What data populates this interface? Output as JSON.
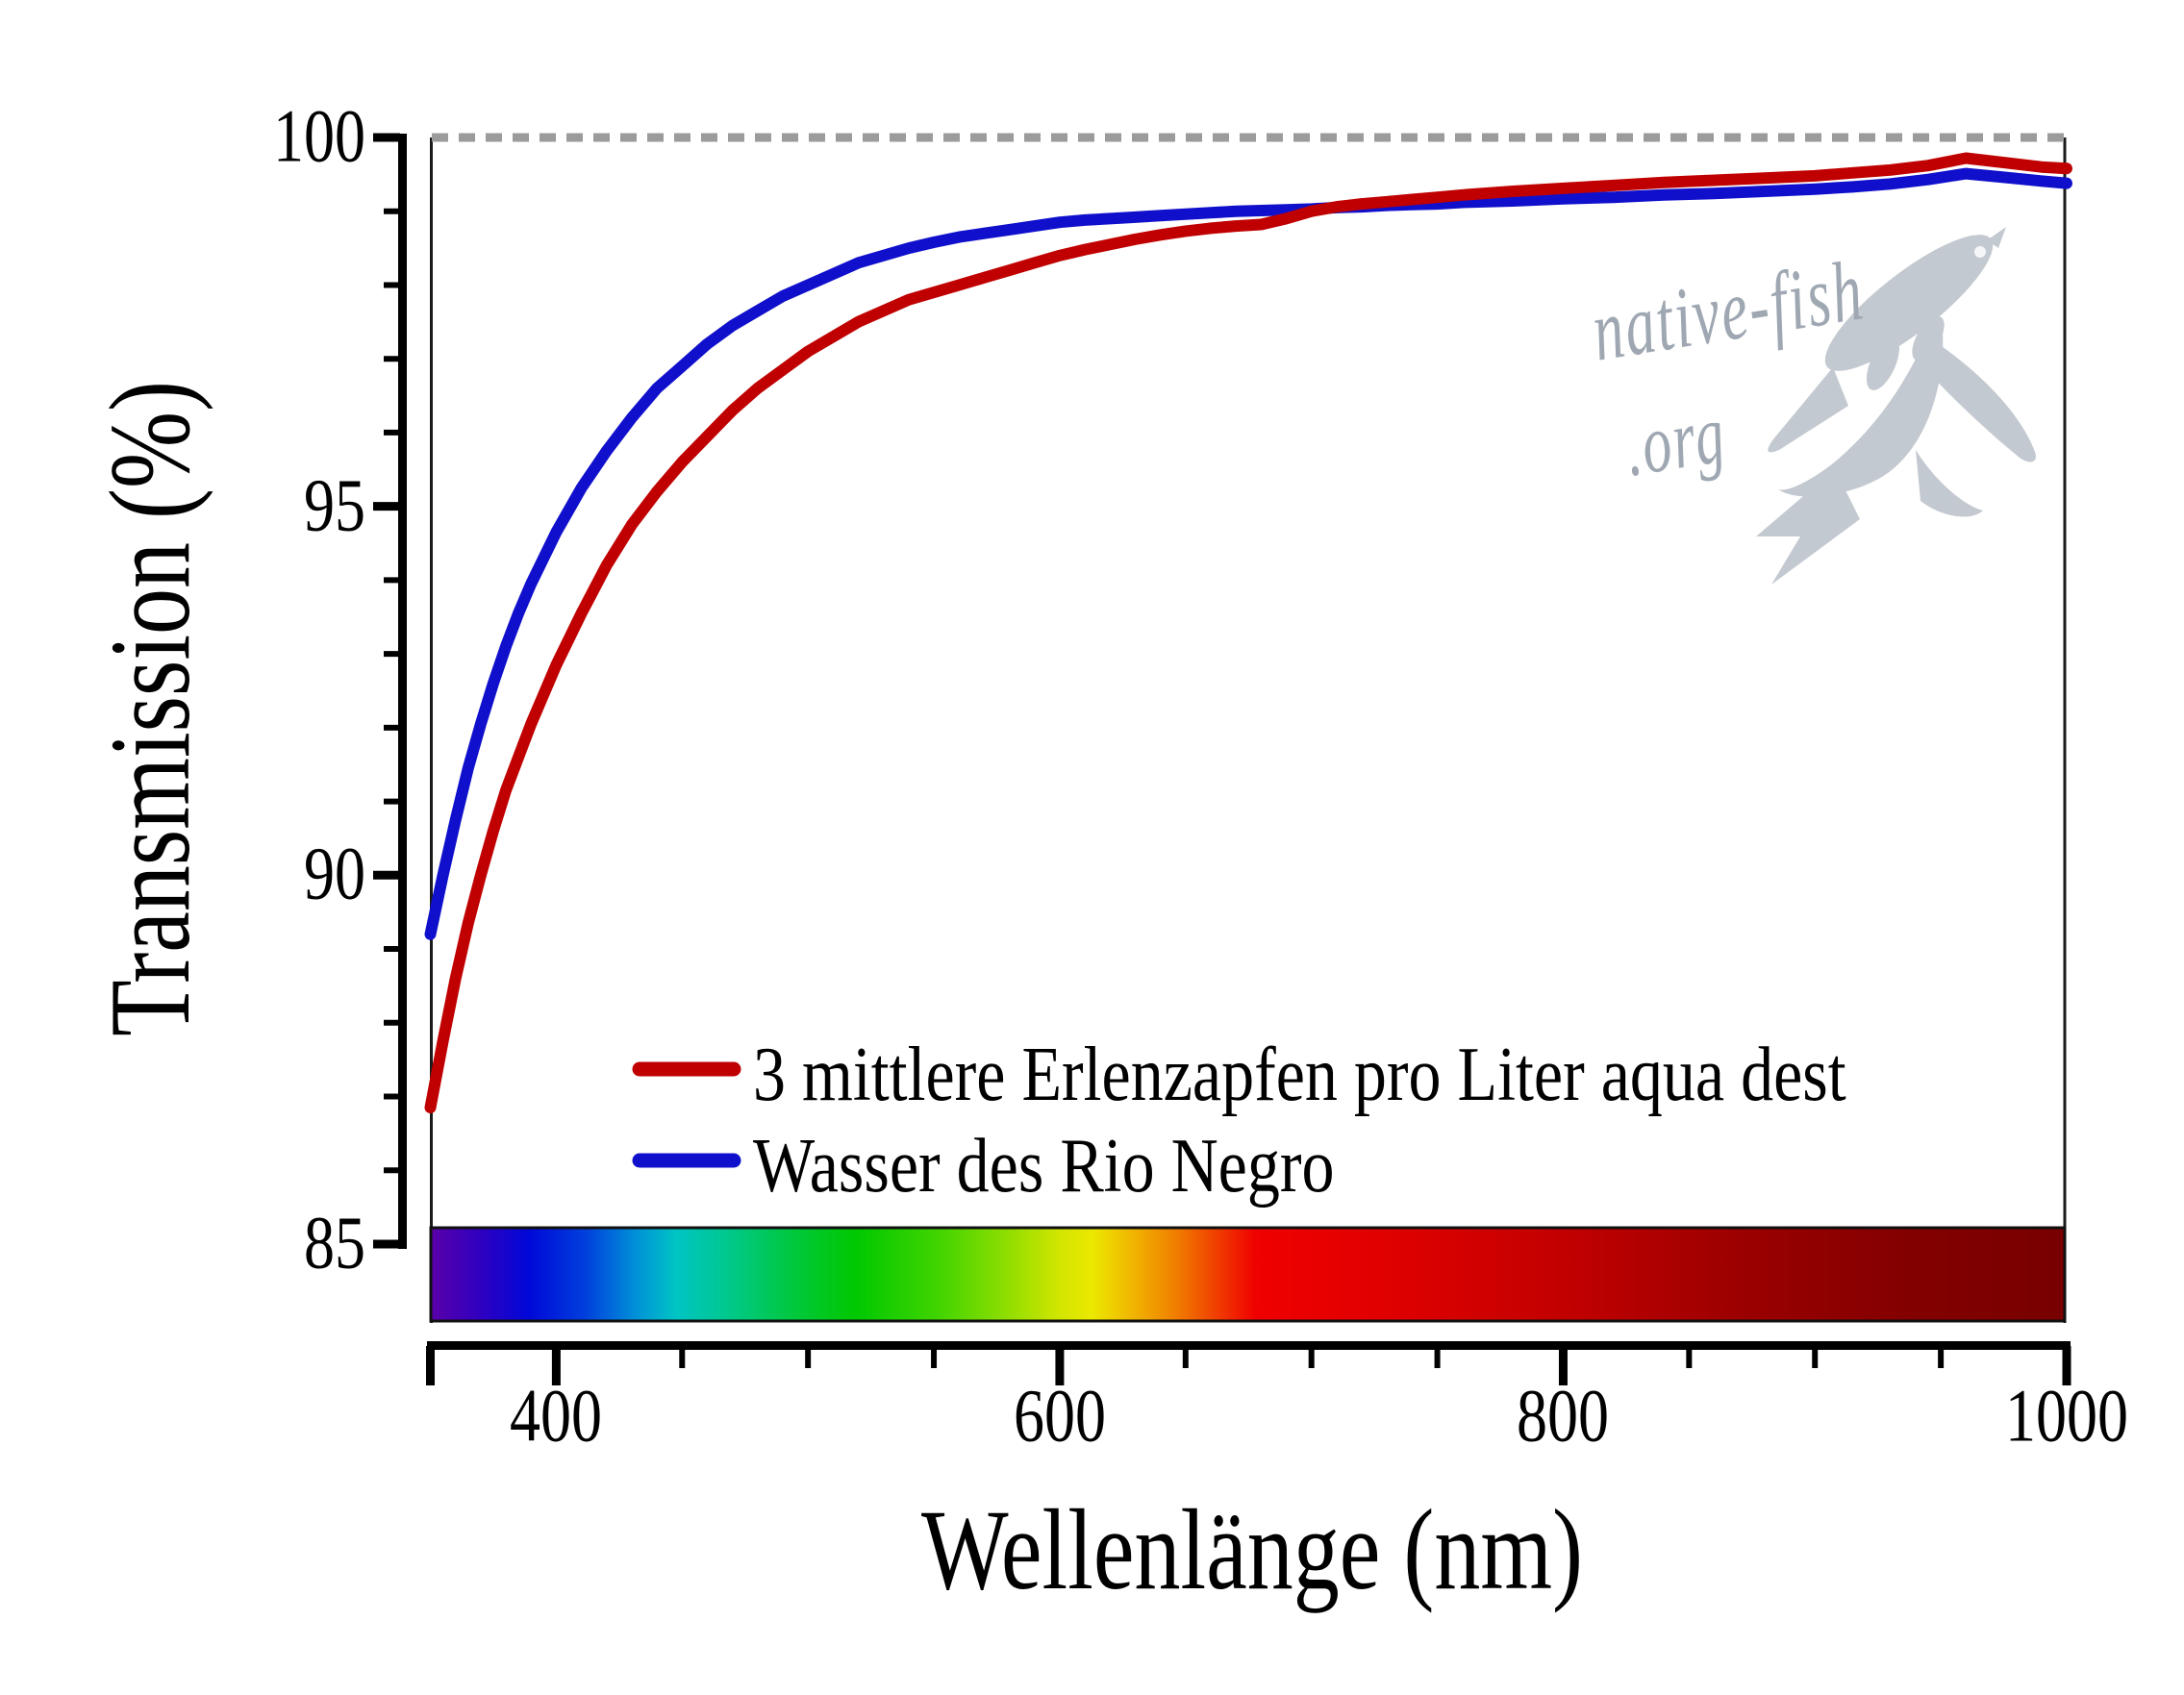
{
  "watermark": {
    "line1": "native-fish",
    "line2": ".org",
    "color": "#9fa8b2"
  },
  "chart_data": {
    "type": "line",
    "title": "",
    "xlabel": "Wellenlänge (nm)",
    "ylabel": "Transmission (%)",
    "xlim": [
      350,
      1000
    ],
    "ylim": [
      85,
      100
    ],
    "grid": false,
    "legend_position": "inside bottom-left",
    "xticks_major": [
      400,
      600,
      800,
      1000
    ],
    "xtick_labels": [
      "400",
      "600",
      "800",
      "1000"
    ],
    "xticks_minor": [
      450,
      500,
      550,
      650,
      700,
      750,
      850,
      900,
      950
    ],
    "yticks_major": [
      100,
      95,
      90,
      85
    ],
    "ytick_labels": [
      "100",
      "95",
      "90",
      "85"
    ],
    "yticks_minor": [
      86,
      87,
      88,
      89,
      91,
      92,
      93,
      94,
      96,
      97,
      98,
      99
    ],
    "reference_line": {
      "y": 100,
      "style": "dashed",
      "color": "#9b9b9b"
    },
    "series": [
      {
        "name": "3 mittlere Erlenzapfen pro Liter aqua dest",
        "color": "#C00000",
        "x": [
          350,
          355,
          360,
          365,
          370,
          375,
          380,
          385,
          390,
          395,
          400,
          410,
          420,
          430,
          440,
          450,
          460,
          470,
          480,
          490,
          500,
          510,
          520,
          530,
          540,
          550,
          560,
          570,
          580,
          590,
          600,
          610,
          620,
          630,
          640,
          650,
          660,
          670,
          680,
          690,
          700,
          710,
          720,
          730,
          740,
          750,
          760,
          780,
          800,
          820,
          840,
          860,
          880,
          900,
          915,
          930,
          945,
          960,
          975,
          990,
          1000
        ],
        "y": [
          86.85,
          87.75,
          88.6,
          89.35,
          90.0,
          90.6,
          91.15,
          91.6,
          92.05,
          92.45,
          92.85,
          93.55,
          94.2,
          94.75,
          95.2,
          95.6,
          95.95,
          96.3,
          96.6,
          96.85,
          97.1,
          97.3,
          97.5,
          97.65,
          97.8,
          97.9,
          98.0,
          98.1,
          98.2,
          98.3,
          98.4,
          98.48,
          98.55,
          98.62,
          98.68,
          98.73,
          98.77,
          98.8,
          98.82,
          98.9,
          99.0,
          99.06,
          99.1,
          99.13,
          99.16,
          99.19,
          99.22,
          99.27,
          99.31,
          99.35,
          99.39,
          99.42,
          99.45,
          99.48,
          99.52,
          99.56,
          99.62,
          99.72,
          99.66,
          99.6,
          99.58
        ]
      },
      {
        "name": "Wasser des Rio Negro",
        "color": "#1010CC",
        "x": [
          350,
          355,
          360,
          365,
          370,
          375,
          380,
          385,
          390,
          395,
          400,
          410,
          420,
          430,
          440,
          450,
          460,
          470,
          480,
          490,
          500,
          510,
          520,
          530,
          540,
          550,
          560,
          570,
          580,
          590,
          600,
          610,
          620,
          630,
          640,
          650,
          660,
          670,
          680,
          690,
          700,
          710,
          720,
          730,
          740,
          750,
          760,
          780,
          800,
          820,
          840,
          860,
          880,
          900,
          915,
          930,
          945,
          960,
          975,
          990,
          1000
        ],
        "y": [
          89.2,
          90.0,
          90.75,
          91.45,
          92.05,
          92.6,
          93.1,
          93.55,
          93.95,
          94.3,
          94.65,
          95.25,
          95.75,
          96.2,
          96.6,
          96.9,
          97.2,
          97.45,
          97.65,
          97.85,
          98.0,
          98.15,
          98.3,
          98.4,
          98.5,
          98.58,
          98.65,
          98.7,
          98.75,
          98.8,
          98.85,
          98.88,
          98.9,
          98.92,
          98.94,
          98.96,
          98.98,
          99.0,
          99.01,
          99.02,
          99.03,
          99.05,
          99.06,
          99.08,
          99.09,
          99.1,
          99.12,
          99.14,
          99.17,
          99.19,
          99.22,
          99.24,
          99.27,
          99.3,
          99.33,
          99.37,
          99.43,
          99.51,
          99.46,
          99.41,
          99.38
        ]
      }
    ],
    "spectrum_bar": {
      "range_nm": [
        350,
        1000
      ],
      "stops": [
        {
          "offset": 0.0,
          "color": "#5A00A8"
        },
        {
          "offset": 0.03,
          "color": "#3000C0"
        },
        {
          "offset": 0.06,
          "color": "#0008D8"
        },
        {
          "offset": 0.095,
          "color": "#0040DC"
        },
        {
          "offset": 0.125,
          "color": "#0090D8"
        },
        {
          "offset": 0.15,
          "color": "#00C4C4"
        },
        {
          "offset": 0.18,
          "color": "#00C890"
        },
        {
          "offset": 0.22,
          "color": "#00C840"
        },
        {
          "offset": 0.26,
          "color": "#00C800"
        },
        {
          "offset": 0.31,
          "color": "#40D400"
        },
        {
          "offset": 0.355,
          "color": "#94DE00"
        },
        {
          "offset": 0.385,
          "color": "#D2E600"
        },
        {
          "offset": 0.405,
          "color": "#ECE800"
        },
        {
          "offset": 0.43,
          "color": "#F0B400"
        },
        {
          "offset": 0.455,
          "color": "#F08000"
        },
        {
          "offset": 0.48,
          "color": "#F04000"
        },
        {
          "offset": 0.505,
          "color": "#F00000"
        },
        {
          "offset": 0.6,
          "color": "#DC0000"
        },
        {
          "offset": 0.7,
          "color": "#C00000"
        },
        {
          "offset": 0.8,
          "color": "#9C0000"
        },
        {
          "offset": 0.9,
          "color": "#840000"
        },
        {
          "offset": 1.0,
          "color": "#780000"
        }
      ]
    }
  }
}
